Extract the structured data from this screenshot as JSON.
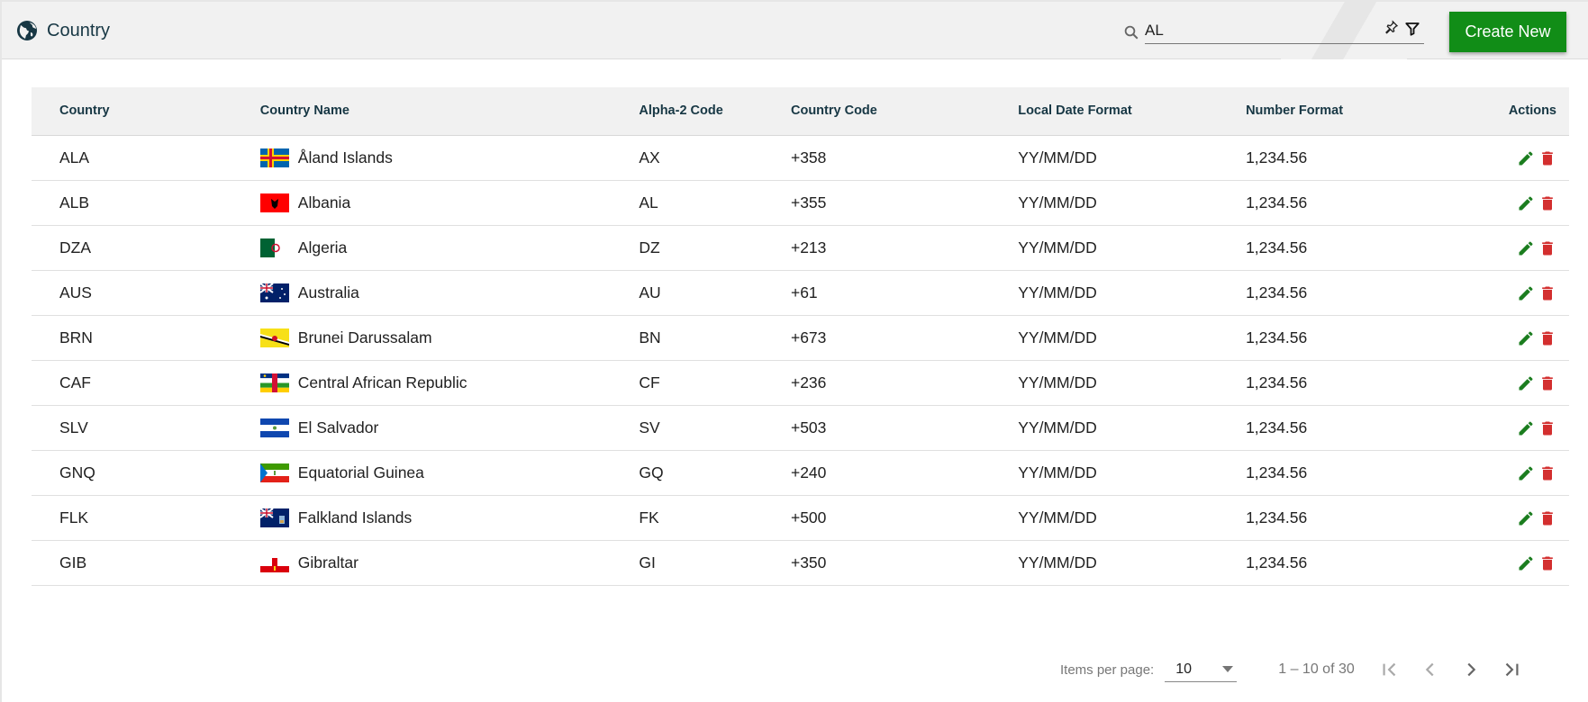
{
  "header": {
    "title": "Country",
    "icon": "globe-icon",
    "search_value": "AL",
    "create_label": "Create New"
  },
  "colors": {
    "accent": "#118d17",
    "edit": "#1b7d1f",
    "delete": "#d32f2f",
    "heading": "#173744"
  },
  "table": {
    "columns": [
      "Country",
      "Country Name",
      "Alpha-2 Code",
      "Country Code",
      "Local Date Format",
      "Number Format",
      "Actions"
    ],
    "rows": [
      {
        "code": "ALA",
        "name": "Åland Islands",
        "alpha2": "AX",
        "phone": "+358",
        "date": "YY/MM/DD",
        "number": "1,234.56"
      },
      {
        "code": "ALB",
        "name": "Albania",
        "alpha2": "AL",
        "phone": "+355",
        "date": "YY/MM/DD",
        "number": "1,234.56"
      },
      {
        "code": "DZA",
        "name": "Algeria",
        "alpha2": "DZ",
        "phone": "+213",
        "date": "YY/MM/DD",
        "number": "1,234.56"
      },
      {
        "code": "AUS",
        "name": "Australia",
        "alpha2": "AU",
        "phone": "+61",
        "date": "YY/MM/DD",
        "number": "1,234.56"
      },
      {
        "code": "BRN",
        "name": "Brunei Darussalam",
        "alpha2": "BN",
        "phone": "+673",
        "date": "YY/MM/DD",
        "number": "1,234.56"
      },
      {
        "code": "CAF",
        "name": "Central African Republic",
        "alpha2": "CF",
        "phone": "+236",
        "date": "YY/MM/DD",
        "number": "1,234.56"
      },
      {
        "code": "SLV",
        "name": "El Salvador",
        "alpha2": "SV",
        "phone": "+503",
        "date": "YY/MM/DD",
        "number": "1,234.56"
      },
      {
        "code": "GNQ",
        "name": "Equatorial Guinea",
        "alpha2": "GQ",
        "phone": "+240",
        "date": "YY/MM/DD",
        "number": "1,234.56"
      },
      {
        "code": "FLK",
        "name": "Falkland Islands",
        "alpha2": "FK",
        "phone": "+500",
        "date": "YY/MM/DD",
        "number": "1,234.56"
      },
      {
        "code": "GIB",
        "name": "Gibraltar",
        "alpha2": "GI",
        "phone": "+350",
        "date": "YY/MM/DD",
        "number": "1,234.56"
      }
    ]
  },
  "pagination": {
    "items_per_page_label": "Items per page:",
    "items_per_page": "10",
    "range": "1 – 10 of 30"
  }
}
